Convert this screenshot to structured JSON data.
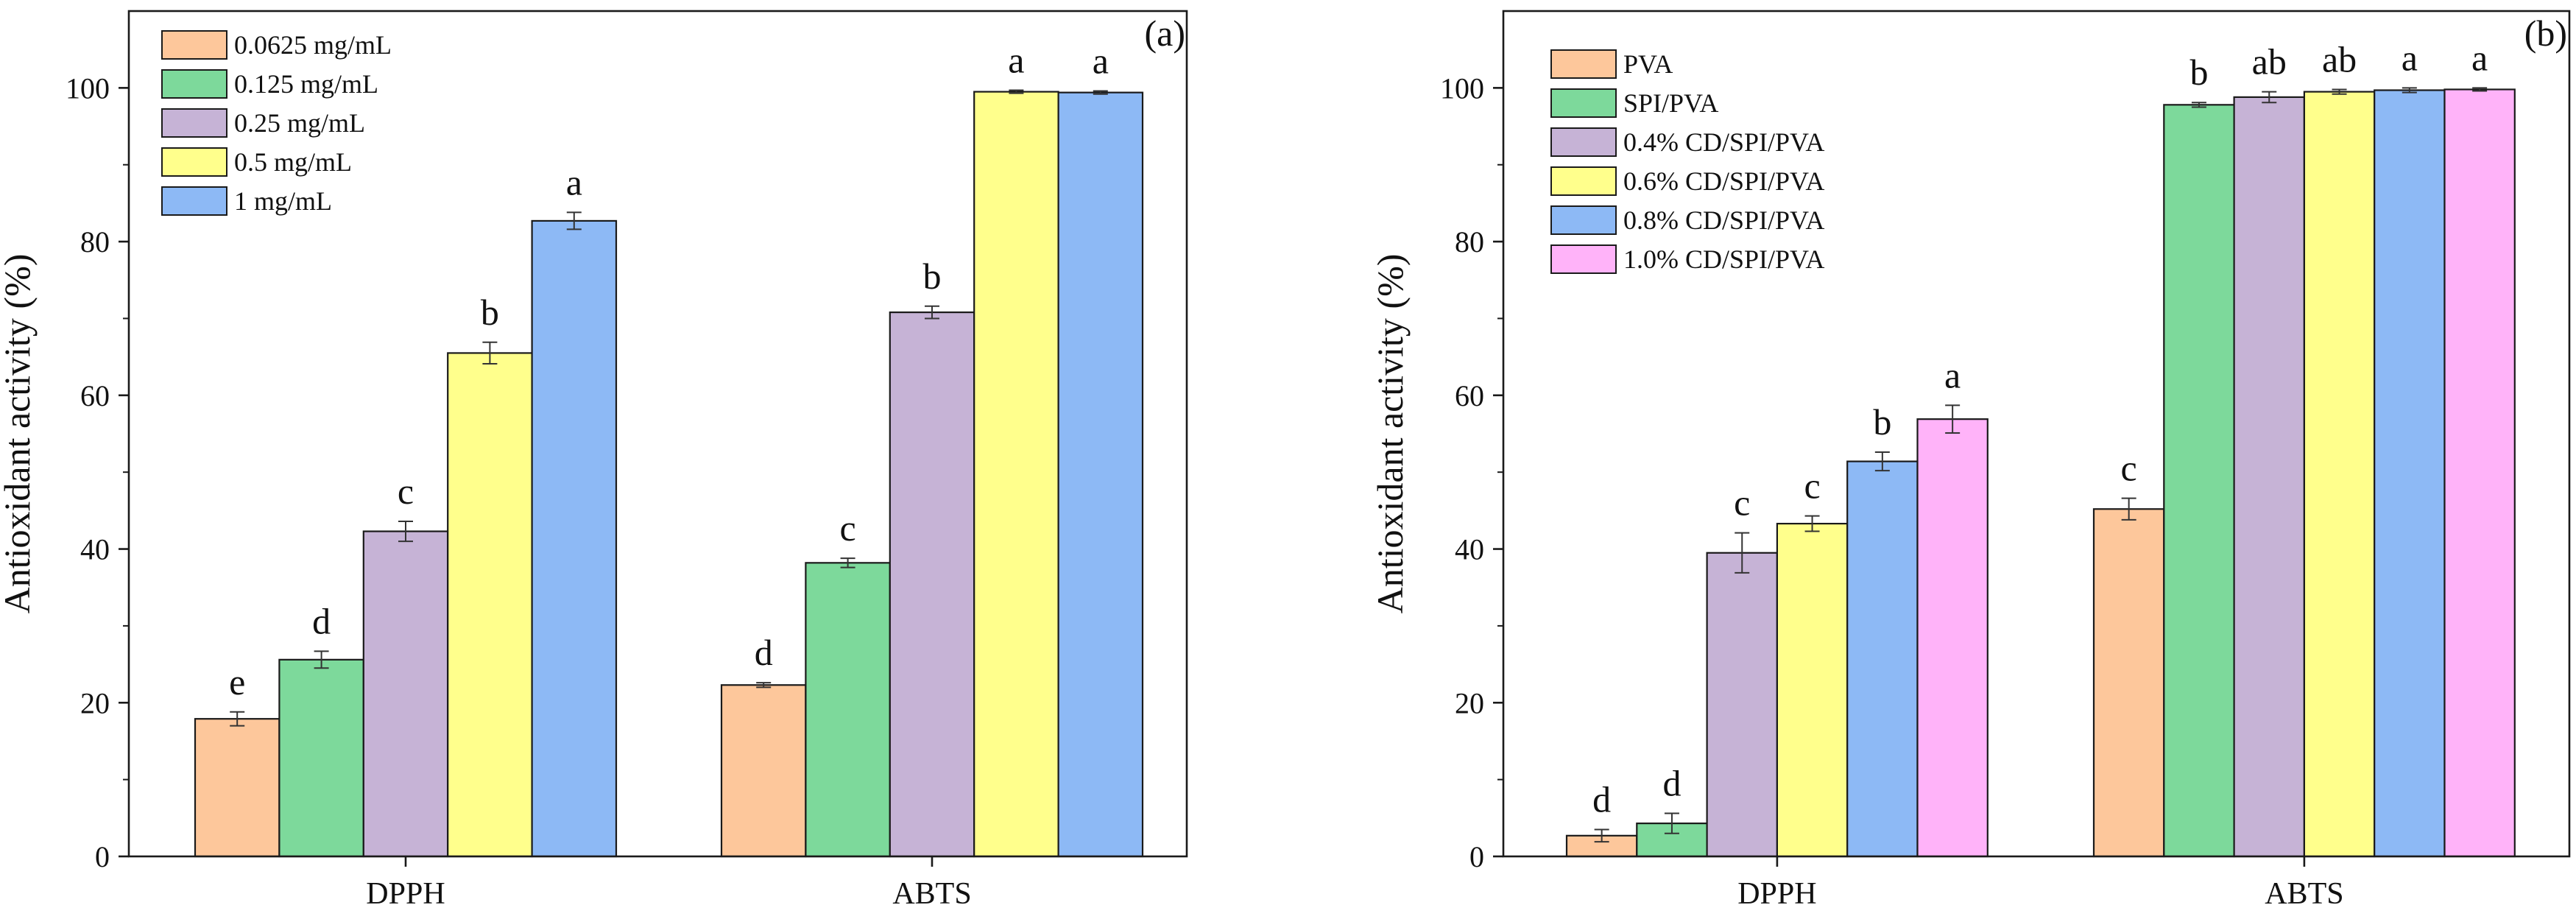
{
  "chart_data": [
    {
      "type": "bar",
      "panel_label": "(a)",
      "categories": [
        "DPPH",
        "ABTS"
      ],
      "ylabel": "Antioxidant activity (%)",
      "ylim": [
        0,
        110
      ],
      "yticks": [
        0,
        20,
        40,
        60,
        80,
        100
      ],
      "legend_position": "top-left",
      "series": [
        {
          "name": "0.0625 mg/mL",
          "color": "#FDC79B",
          "values": [
            17.9,
            22.3
          ],
          "errors": [
            0.9,
            0.3
          ],
          "letters": [
            "e",
            "d"
          ]
        },
        {
          "name": "0.125 mg/mL",
          "color": "#7DD99B",
          "values": [
            25.6,
            38.2
          ],
          "errors": [
            1.1,
            0.6
          ],
          "letters": [
            "d",
            "c"
          ]
        },
        {
          "name": "0.25 mg/mL",
          "color": "#C6B3D6",
          "values": [
            42.3,
            70.8
          ],
          "errors": [
            1.3,
            0.8
          ],
          "letters": [
            "c",
            "b"
          ]
        },
        {
          "name": "0.5 mg/mL",
          "color": "#FFFF8C",
          "values": [
            65.5,
            99.5
          ],
          "errors": [
            1.4,
            0.2
          ],
          "letters": [
            "b",
            "a"
          ]
        },
        {
          "name": "1 mg/mL",
          "color": "#8DB9F5",
          "values": [
            82.7,
            99.4
          ],
          "errors": [
            1.1,
            0.2
          ],
          "letters": [
            "a",
            "a"
          ]
        }
      ]
    },
    {
      "type": "bar",
      "panel_label": "(b)",
      "categories": [
        "DPPH",
        "ABTS"
      ],
      "ylabel": "Antioxidant activity (%)",
      "ylim": [
        0,
        110
      ],
      "yticks": [
        0,
        20,
        40,
        60,
        80,
        100
      ],
      "legend_position": "top-left",
      "series": [
        {
          "name": "PVA",
          "color": "#FDC79B",
          "values": [
            2.7,
            45.2
          ],
          "errors": [
            0.8,
            1.4
          ],
          "letters": [
            "d",
            "c"
          ]
        },
        {
          "name": "SPI/PVA",
          "color": "#7DD99B",
          "values": [
            4.3,
            97.8
          ],
          "errors": [
            1.3,
            0.3
          ],
          "letters": [
            "d",
            "b"
          ]
        },
        {
          "name": "0.4% CD/SPI/PVA",
          "color": "#C6B3D6",
          "values": [
            39.5,
            98.8
          ],
          "errors": [
            2.6,
            0.7
          ],
          "letters": [
            "c",
            "ab"
          ]
        },
        {
          "name": "0.6% CD/SPI/PVA",
          "color": "#FFFF8C",
          "values": [
            43.3,
            99.5
          ],
          "errors": [
            1.0,
            0.3
          ],
          "letters": [
            "c",
            "ab"
          ]
        },
        {
          "name": "0.8% CD/SPI/PVA",
          "color": "#8DB9F5",
          "values": [
            51.4,
            99.7
          ],
          "errors": [
            1.2,
            0.3
          ],
          "letters": [
            "b",
            "a"
          ]
        },
        {
          "name": "1.0% CD/SPI/PVA",
          "color": "#FFB3F9",
          "values": [
            56.9,
            99.8
          ],
          "errors": [
            1.8,
            0.2
          ],
          "letters": [
            "a",
            "a"
          ]
        }
      ]
    }
  ]
}
